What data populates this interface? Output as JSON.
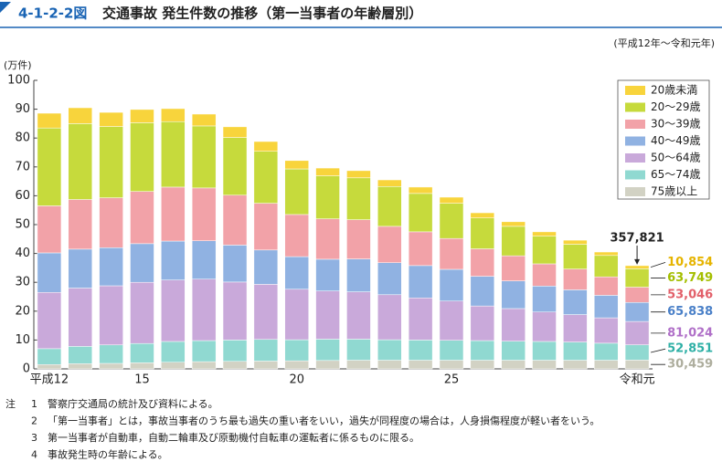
{
  "header": {
    "figure_number": "4-1-2-2図",
    "title": "交通事故 発生件数の推移（第一当事者の年齢層別）"
  },
  "chart_data": {
    "type": "stacked_bar",
    "subtitle": "(平成12年～令和元年)",
    "y_axis_label": "(万件)",
    "categories": [
      "平成12",
      null,
      null,
      "15",
      null,
      null,
      null,
      null,
      "20",
      null,
      null,
      null,
      null,
      "25",
      null,
      null,
      null,
      null,
      null,
      "令和元"
    ],
    "ylim": [
      0,
      100
    ],
    "yticks": [
      0,
      10,
      20,
      30,
      40,
      50,
      60,
      70,
      80,
      90,
      100
    ],
    "grid": false,
    "legend": "top-right",
    "total": {
      "value": 35.7821,
      "label": "357,821"
    },
    "series": [
      {
        "name": "20歳未満",
        "color": "#f8d43c",
        "label_color": "#e6b400",
        "values": [
          5.1,
          5.5,
          4.9,
          4.6,
          4.5,
          4.1,
          3.7,
          3.4,
          2.9,
          2.7,
          2.5,
          2.3,
          2.2,
          2.1,
          1.8,
          1.6,
          1.5,
          1.4,
          1.2,
          1.0854
        ],
        "value_labels": [
          null,
          null,
          null,
          null,
          null,
          null,
          null,
          null,
          null,
          null,
          null,
          null,
          null,
          null,
          null,
          null,
          null,
          null,
          null,
          "10,854"
        ]
      },
      {
        "name": "20～29歳",
        "color": "#c6da3c",
        "label_color": "#a4be00",
        "values": [
          27,
          26.3,
          24.7,
          23.8,
          22.7,
          21.5,
          20,
          18,
          15.8,
          14.9,
          14.5,
          13.8,
          13.3,
          12.2,
          10.7,
          10.2,
          9.6,
          8.6,
          7.4,
          6.3749
        ],
        "value_labels": [
          null,
          null,
          null,
          null,
          null,
          null,
          null,
          null,
          null,
          null,
          null,
          null,
          null,
          null,
          null,
          null,
          null,
          null,
          null,
          "63,749"
        ]
      },
      {
        "name": "30～39歳",
        "color": "#f2a2a8",
        "label_color": "#e2606a",
        "values": [
          16.3,
          17.2,
          17.3,
          18.1,
          18.7,
          18.3,
          17.3,
          16.2,
          14.6,
          14,
          13.6,
          12.6,
          11.7,
          10.7,
          9.5,
          8.7,
          7.7,
          7.2,
          6.4,
          5.3046
        ],
        "value_labels": [
          null,
          null,
          null,
          null,
          null,
          null,
          null,
          null,
          null,
          null,
          null,
          null,
          null,
          null,
          null,
          null,
          null,
          null,
          null,
          "53,046"
        ]
      },
      {
        "name": "40～49歳",
        "color": "#90b2e2",
        "label_color": "#4a80c8",
        "values": [
          13.7,
          13.5,
          13.2,
          13.4,
          13.5,
          13.3,
          12.8,
          11.9,
          11.3,
          11,
          11.4,
          11.1,
          11.2,
          11,
          10.3,
          9.6,
          9,
          8.6,
          7.8,
          6.5838
        ],
        "value_labels": [
          null,
          null,
          null,
          null,
          null,
          null,
          null,
          null,
          null,
          null,
          null,
          null,
          null,
          null,
          null,
          null,
          null,
          null,
          null,
          "65,838"
        ]
      },
      {
        "name": "50～64歳",
        "color": "#c9a9da",
        "label_color": "#b070c8",
        "values": [
          19.5,
          20.2,
          20.5,
          21.2,
          21.3,
          21.3,
          20.1,
          19.1,
          17.5,
          16.7,
          16.4,
          15.6,
          14.6,
          13.6,
          12,
          11.3,
          10.2,
          9.5,
          8.8,
          8.1024
        ],
        "value_labels": [
          null,
          null,
          null,
          null,
          null,
          null,
          null,
          null,
          null,
          null,
          null,
          null,
          null,
          null,
          null,
          null,
          null,
          null,
          null,
          "81,024"
        ]
      },
      {
        "name": "65～74歳",
        "color": "#90d9d1",
        "label_color": "#2fb0a6",
        "values": [
          5.5,
          6,
          6.4,
          6.7,
          7.2,
          7.3,
          7.4,
          7.5,
          7.3,
          7.4,
          7.3,
          7.1,
          7,
          6.9,
          6.8,
          6.6,
          6.5,
          6.3,
          5.9,
          5.2851
        ],
        "value_labels": [
          null,
          null,
          null,
          null,
          null,
          null,
          null,
          null,
          null,
          null,
          null,
          null,
          null,
          null,
          null,
          null,
          null,
          null,
          null,
          "52,851"
        ]
      },
      {
        "name": "75歳以上",
        "color": "#d2d2c4",
        "label_color": "#aeae9e",
        "values": [
          1.5,
          1.8,
          1.9,
          2.1,
          2.3,
          2.5,
          2.6,
          2.7,
          2.8,
          2.9,
          3,
          3,
          3,
          3,
          3,
          3,
          3,
          3,
          3,
          3.0459
        ],
        "value_labels": [
          null,
          null,
          null,
          null,
          null,
          null,
          null,
          null,
          null,
          null,
          null,
          null,
          null,
          null,
          null,
          null,
          null,
          null,
          null,
          "30,459"
        ]
      }
    ]
  },
  "notes": {
    "label": "注",
    "items": [
      {
        "number": "1",
        "text": "警察庁交通局の統計及び資料による。"
      },
      {
        "number": "2",
        "text": "「第一当事者」とは，事故当事者のうち最も過失の重い者をいい，過失が同程度の場合は，人身損傷程度が軽い者をいう。"
      },
      {
        "number": "3",
        "text": "第一当事者が自動車，自動二輪車及び原動機付自転車の運転者に係るものに限る。"
      },
      {
        "number": "4",
        "text": "事故発生時の年齢による。"
      }
    ]
  }
}
